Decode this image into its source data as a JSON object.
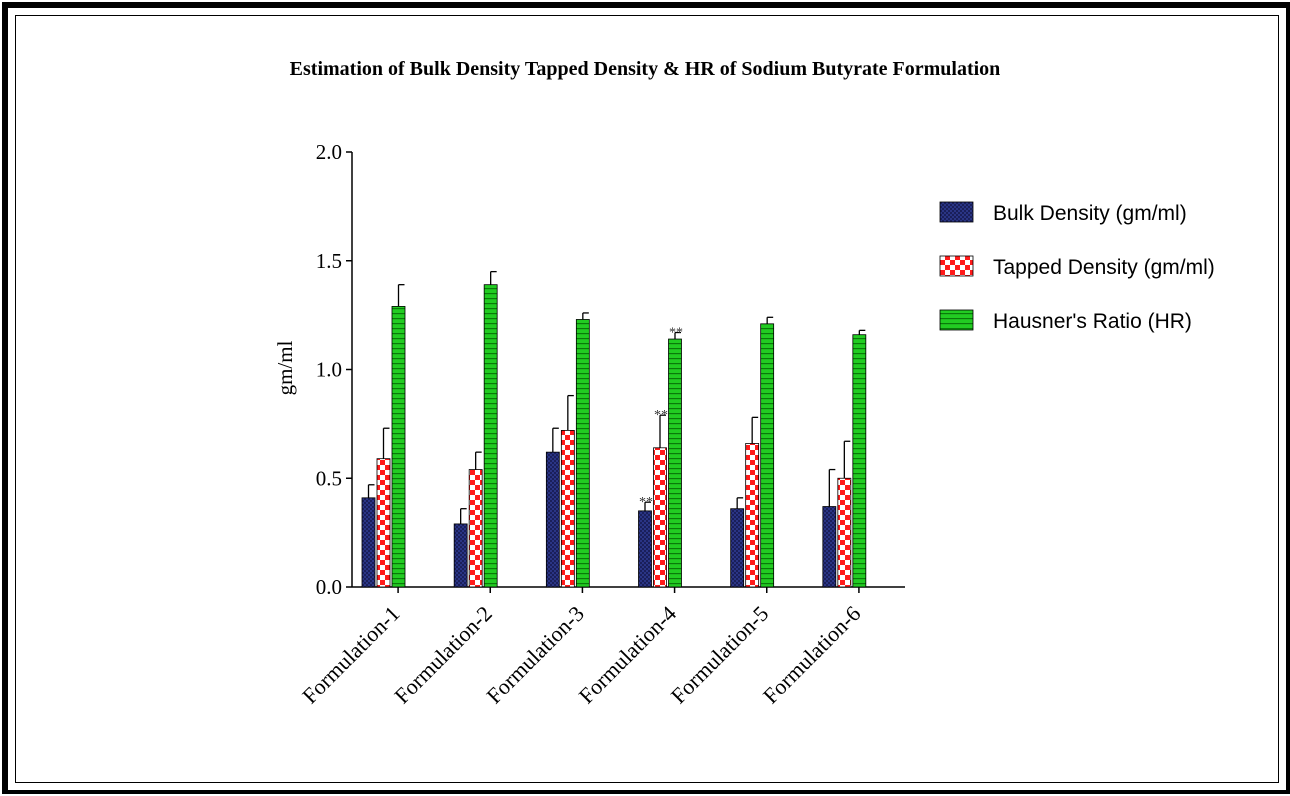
{
  "chart_data": {
    "type": "bar",
    "title": "Estimation of Bulk Density  Tapped Density & HR of Sodium Butyrate Formulation",
    "xlabel": "",
    "ylabel": "gm/ml",
    "ylim": [
      0,
      2.0
    ],
    "yticks": [
      "0.0",
      "0.5",
      "1.0",
      "1.5",
      "2.0"
    ],
    "categories": [
      "Formulation-1",
      "Formulation-2",
      "Formulation-3",
      "Formulation-4",
      "Formulation-5",
      "Formulation-6"
    ],
    "series": [
      {
        "name": "Bulk Density (gm/ml)",
        "values": [
          0.41,
          0.29,
          0.62,
          0.35,
          0.36,
          0.37
        ],
        "errors": [
          0.06,
          0.07,
          0.11,
          0.04,
          0.05,
          0.17
        ],
        "annotations": [
          "",
          "",
          "",
          "**",
          "",
          ""
        ],
        "color": "#1a1f5a"
      },
      {
        "name": "Tapped Density (gm/ml)",
        "values": [
          0.59,
          0.54,
          0.72,
          0.64,
          0.66,
          0.5
        ],
        "errors": [
          0.14,
          0.08,
          0.16,
          0.15,
          0.12,
          0.17
        ],
        "annotations": [
          "",
          "",
          "",
          "**",
          "",
          ""
        ],
        "color": "#ff1a1a"
      },
      {
        "name": "Hausner's Ratio (HR)",
        "values": [
          1.29,
          1.39,
          1.23,
          1.14,
          1.21,
          1.16
        ],
        "errors": [
          0.1,
          0.06,
          0.03,
          0.03,
          0.03,
          0.02
        ],
        "annotations": [
          "",
          "",
          "",
          "**",
          "",
          ""
        ],
        "color": "#22cc22"
      }
    ],
    "legend_position": "right",
    "grid": false
  }
}
